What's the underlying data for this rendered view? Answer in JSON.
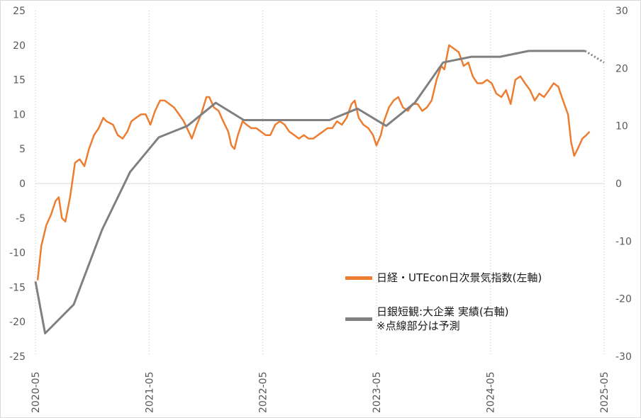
{
  "chart_data": {
    "type": "line",
    "x_start": "2020-05",
    "x_end": "2025-05",
    "x_ticks": [
      "2020-05",
      "2021-05",
      "2022-05",
      "2023-05",
      "2024-05",
      "2025-05"
    ],
    "y_left": {
      "ticks": [
        25,
        20,
        15,
        10,
        5,
        0,
        -5,
        -10,
        -15,
        -20,
        -25
      ],
      "lim": [
        -25,
        25
      ]
    },
    "y_right": {
      "ticks": [
        30,
        20,
        10,
        0,
        -10,
        -20,
        -30
      ],
      "lim": [
        -30,
        30
      ]
    },
    "grid": "vertical dotted lines at x ticks",
    "series": [
      {
        "name": "日経・UTEcon日次景気指数(左軸)",
        "axis": "left",
        "color": "#ed7d31",
        "points": [
          [
            "2020-05-08",
            -14.0
          ],
          [
            "2020-05-20",
            -9.0
          ],
          [
            "2020-06-05",
            -6.0
          ],
          [
            "2020-06-20",
            -4.5
          ],
          [
            "2020-07-05",
            -2.5
          ],
          [
            "2020-07-15",
            -2.0
          ],
          [
            "2020-07-25",
            -5.0
          ],
          [
            "2020-08-05",
            -5.5
          ],
          [
            "2020-08-20",
            -2.0
          ],
          [
            "2020-09-05",
            3.0
          ],
          [
            "2020-09-20",
            3.5
          ],
          [
            "2020-10-05",
            2.5
          ],
          [
            "2020-10-20",
            5.0
          ],
          [
            "2020-11-05",
            7.0
          ],
          [
            "2020-11-20",
            8.0
          ],
          [
            "2020-12-05",
            9.5
          ],
          [
            "2020-12-15",
            9.0
          ],
          [
            "2021-01-05",
            8.5
          ],
          [
            "2021-01-20",
            7.0
          ],
          [
            "2021-02-05",
            6.5
          ],
          [
            "2021-02-20",
            7.5
          ],
          [
            "2021-03-05",
            9.0
          ],
          [
            "2021-03-20",
            9.5
          ],
          [
            "2021-04-05",
            10.0
          ],
          [
            "2021-04-20",
            10.0
          ],
          [
            "2021-05-05",
            8.5
          ],
          [
            "2021-05-20",
            10.5
          ],
          [
            "2021-06-05",
            12.0
          ],
          [
            "2021-06-20",
            12.0
          ],
          [
            "2021-07-05",
            11.5
          ],
          [
            "2021-07-20",
            11.0
          ],
          [
            "2021-08-05",
            10.0
          ],
          [
            "2021-08-20",
            9.0
          ],
          [
            "2021-09-05",
            7.5
          ],
          [
            "2021-09-15",
            6.5
          ],
          [
            "2021-10-01",
            8.5
          ],
          [
            "2021-10-15",
            10.0
          ],
          [
            "2021-11-01",
            12.5
          ],
          [
            "2021-11-10",
            12.5
          ],
          [
            "2021-11-25",
            11.0
          ],
          [
            "2021-12-10",
            10.5
          ],
          [
            "2021-12-25",
            9.0
          ],
          [
            "2022-01-10",
            7.5
          ],
          [
            "2022-01-20",
            5.5
          ],
          [
            "2022-01-30",
            5.0
          ],
          [
            "2022-02-10",
            7.0
          ],
          [
            "2022-02-25",
            9.0
          ],
          [
            "2022-03-10",
            8.5
          ],
          [
            "2022-03-25",
            8.0
          ],
          [
            "2022-04-10",
            8.0
          ],
          [
            "2022-04-25",
            7.5
          ],
          [
            "2022-05-10",
            7.0
          ],
          [
            "2022-05-25",
            7.0
          ],
          [
            "2022-06-10",
            8.5
          ],
          [
            "2022-06-25",
            9.0
          ],
          [
            "2022-07-10",
            8.5
          ],
          [
            "2022-07-25",
            7.5
          ],
          [
            "2022-08-10",
            7.0
          ],
          [
            "2022-08-25",
            6.5
          ],
          [
            "2022-09-10",
            7.0
          ],
          [
            "2022-09-25",
            6.5
          ],
          [
            "2022-10-10",
            6.5
          ],
          [
            "2022-10-25",
            7.0
          ],
          [
            "2022-11-10",
            7.5
          ],
          [
            "2022-11-25",
            8.0
          ],
          [
            "2022-12-10",
            8.0
          ],
          [
            "2022-12-25",
            9.0
          ],
          [
            "2023-01-10",
            8.5
          ],
          [
            "2023-01-25",
            9.5
          ],
          [
            "2023-02-10",
            11.5
          ],
          [
            "2023-02-20",
            12.0
          ],
          [
            "2023-03-05",
            9.5
          ],
          [
            "2023-03-20",
            8.5
          ],
          [
            "2023-04-05",
            8.0
          ],
          [
            "2023-04-20",
            7.0
          ],
          [
            "2023-05-01",
            5.5
          ],
          [
            "2023-05-15",
            7.0
          ],
          [
            "2023-05-25",
            9.0
          ],
          [
            "2023-06-10",
            11.0
          ],
          [
            "2023-06-25",
            12.0
          ],
          [
            "2023-07-10",
            12.5
          ],
          [
            "2023-07-25",
            11.0
          ],
          [
            "2023-08-10",
            10.5
          ],
          [
            "2023-08-25",
            11.5
          ],
          [
            "2023-09-10",
            11.5
          ],
          [
            "2023-09-25",
            10.5
          ],
          [
            "2023-10-10",
            11.0
          ],
          [
            "2023-10-25",
            12.0
          ],
          [
            "2023-11-10",
            15.0
          ],
          [
            "2023-11-25",
            17.0
          ],
          [
            "2023-12-05",
            16.5
          ],
          [
            "2023-12-20",
            20.0
          ],
          [
            "2024-01-05",
            19.5
          ],
          [
            "2024-01-20",
            19.0
          ],
          [
            "2024-02-05",
            17.0
          ],
          [
            "2024-02-20",
            17.5
          ],
          [
            "2024-03-05",
            15.5
          ],
          [
            "2024-03-20",
            14.5
          ],
          [
            "2024-04-05",
            14.5
          ],
          [
            "2024-04-20",
            15.0
          ],
          [
            "2024-05-05",
            14.5
          ],
          [
            "2024-05-20",
            13.0
          ],
          [
            "2024-06-05",
            12.5
          ],
          [
            "2024-06-20",
            13.5
          ],
          [
            "2024-07-05",
            11.5
          ],
          [
            "2024-07-20",
            15.0
          ],
          [
            "2024-08-05",
            15.5
          ],
          [
            "2024-08-20",
            14.5
          ],
          [
            "2024-09-05",
            13.5
          ],
          [
            "2024-09-20",
            12.0
          ],
          [
            "2024-10-05",
            13.0
          ],
          [
            "2024-10-20",
            12.5
          ],
          [
            "2024-11-05",
            13.5
          ],
          [
            "2024-11-20",
            14.5
          ],
          [
            "2024-12-05",
            14.0
          ],
          [
            "2024-12-20",
            12.0
          ],
          [
            "2025-01-05",
            10.0
          ],
          [
            "2025-01-15",
            6.0
          ],
          [
            "2025-01-25",
            4.0
          ],
          [
            "2025-02-05",
            5.0
          ],
          [
            "2025-02-20",
            6.5
          ],
          [
            "2025-03-05",
            7.0
          ],
          [
            "2025-03-15",
            7.5
          ]
        ]
      },
      {
        "name": "日銀短観:大企業 実績(右軸)",
        "axis": "right",
        "color": "#808080",
        "points": [
          [
            "2020-05-01",
            -17
          ],
          [
            "2020-06-01",
            -26
          ],
          [
            "2020-09-01",
            -21
          ],
          [
            "2020-12-01",
            -8
          ],
          [
            "2021-03-01",
            2
          ],
          [
            "2021-06-01",
            8
          ],
          [
            "2021-09-01",
            10
          ],
          [
            "2021-12-01",
            14
          ],
          [
            "2022-03-01",
            11
          ],
          [
            "2022-06-01",
            11
          ],
          [
            "2022-09-01",
            11
          ],
          [
            "2022-12-01",
            11
          ],
          [
            "2023-03-01",
            13
          ],
          [
            "2023-06-01",
            10
          ],
          [
            "2023-09-01",
            14
          ],
          [
            "2023-12-01",
            21
          ],
          [
            "2024-03-01",
            22
          ],
          [
            "2024-06-01",
            22
          ],
          [
            "2024-09-01",
            23
          ],
          [
            "2024-12-01",
            23
          ],
          [
            "2025-03-01",
            23
          ]
        ],
        "forecast": {
          "name": "※点線部分は予測",
          "points": [
            [
              "2025-03-01",
              23
            ],
            [
              "2025-05-01",
              21
            ]
          ]
        }
      }
    ]
  },
  "legend": {
    "item1": "日経・UTEcon日次景気指数(左軸)",
    "item2_line1": "日銀短観:大企業 実績(右軸)",
    "item2_line2": "※点線部分は予測"
  }
}
